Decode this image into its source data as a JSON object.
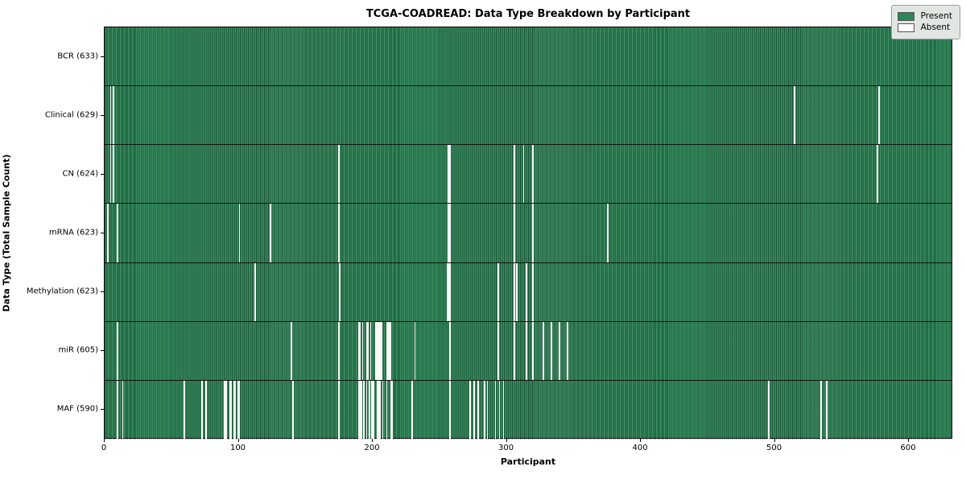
{
  "title": "TCGA-COADREAD: Data Type Breakdown by Participant",
  "xlabel": "Participant",
  "ylabel": "Data Type (Total Sample Count)",
  "legend": {
    "present_label": "Present",
    "absent_label": "Absent"
  },
  "colors": {
    "present": "#2e8557",
    "absent": "#f8f8f6",
    "row_divider": "#101510",
    "legend_bg": "#e2e6e2"
  },
  "chart_data": {
    "type": "heatmap",
    "title": "TCGA-COADREAD: Data Type Breakdown by Participant",
    "xlabel": "Participant",
    "ylabel": "Data Type (Total Sample Count)",
    "legend_entries": [
      "Present",
      "Absent"
    ],
    "legend_position": "upper right",
    "grid": false,
    "n_participants": 633,
    "xlim": [
      0,
      633
    ],
    "x_ticks": [
      0,
      100,
      200,
      300,
      400,
      500,
      600
    ],
    "rows": [
      {
        "label": "BCR (633)",
        "data_type": "BCR",
        "total_sample_count": 633,
        "absent_participants": []
      },
      {
        "label": "Clinical (629)",
        "data_type": "Clinical",
        "total_sample_count": 629,
        "absent_participants": [
          4,
          6,
          514,
          577
        ]
      },
      {
        "label": "CN (624)",
        "data_type": "CN",
        "total_sample_count": 624,
        "absent_participants": [
          4,
          6,
          174,
          256,
          257,
          305,
          312,
          319,
          576
        ]
      },
      {
        "label": "mRNA (623)",
        "data_type": "mRNA",
        "total_sample_count": 623,
        "absent_participants": [
          2,
          9,
          100,
          123,
          174,
          256,
          257,
          305,
          319,
          375
        ]
      },
      {
        "label": "Methylation (623)",
        "data_type": "Methylation",
        "total_sample_count": 623,
        "absent_participants": [
          112,
          175,
          255,
          256,
          257,
          293,
          305,
          307,
          314,
          319
        ]
      },
      {
        "label": "miR (605)",
        "data_type": "miR",
        "total_sample_count": 605,
        "absent_participants": [
          9,
          139,
          174,
          189,
          190,
          192,
          195,
          196,
          198,
          202,
          203,
          204,
          205,
          206,
          210,
          211,
          212,
          213,
          231,
          257,
          293,
          305,
          314,
          319,
          327,
          333,
          339,
          345
        ]
      },
      {
        "label": "MAF (590)",
        "data_type": "MAF",
        "total_sample_count": 590,
        "absent_participants": [
          9,
          13,
          59,
          72,
          75,
          89,
          90,
          93,
          94,
          96,
          97,
          99,
          100,
          140,
          174,
          189,
          190,
          191,
          193,
          195,
          197,
          199,
          200,
          203,
          204,
          205,
          207,
          210,
          213,
          214,
          229,
          257,
          272,
          275,
          278,
          283,
          285,
          291,
          294,
          297,
          495,
          534,
          538
        ]
      }
    ]
  }
}
